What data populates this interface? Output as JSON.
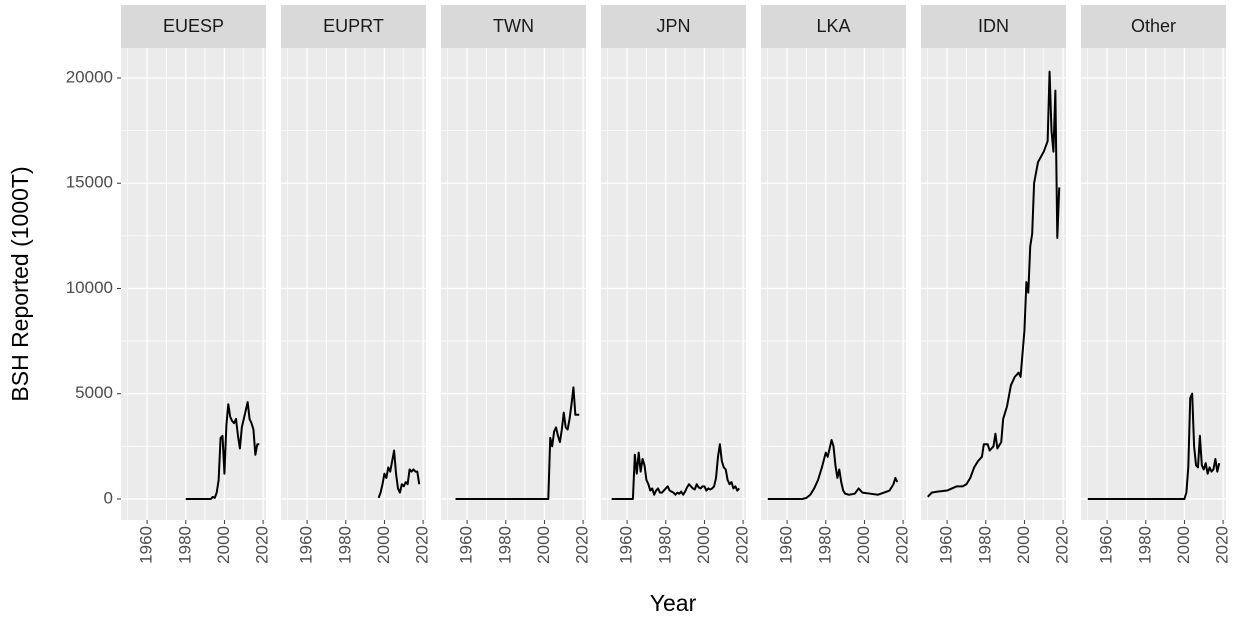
{
  "chart_data": [
    {
      "type": "line",
      "title": "EUESP",
      "ylabel": "BSH Reported (1000T)",
      "xlabel": "Year",
      "color": "#000000",
      "x": [
        1980,
        1993,
        1994,
        1995,
        1996,
        1997,
        1998,
        1999,
        2000,
        2001,
        2002,
        2003,
        2004,
        2005,
        2006,
        2007,
        2008,
        2009,
        2010,
        2011,
        2012,
        2013,
        2014,
        2015,
        2016,
        2017,
        2018
      ],
      "values": [
        0,
        0,
        100,
        50,
        300,
        900,
        2900,
        3000,
        1200,
        3500,
        4500,
        3900,
        3700,
        3600,
        3800,
        3000,
        2400,
        3400,
        3800,
        4200,
        4600,
        3800,
        3600,
        3300,
        2100,
        2600,
        2600
      ],
      "xlim": [
        1946.5,
        2021.5
      ],
      "ylim": [
        -1000,
        21425
      ],
      "xticks": [
        1960,
        1980,
        2000,
        2020
      ],
      "yticks": [
        0,
        5000,
        10000,
        15000,
        20000
      ],
      "grid": true
    },
    {
      "type": "line",
      "title": "EUPRT",
      "color": "#000000",
      "x": [
        1997,
        1998,
        1999,
        2000,
        2001,
        2002,
        2003,
        2004,
        2005,
        2006,
        2007,
        2008,
        2009,
        2010,
        2011,
        2012,
        2013,
        2014,
        2015,
        2016,
        2017,
        2018
      ],
      "values": [
        50,
        300,
        700,
        1200,
        1000,
        1500,
        1300,
        1800,
        2300,
        1200,
        500,
        300,
        700,
        600,
        800,
        700,
        1400,
        1300,
        1400,
        1300,
        1300,
        700
      ],
      "xlim": [
        1946.5,
        2021.5
      ],
      "ylim": [
        -1000,
        21425
      ],
      "xticks": [
        1960,
        1980,
        2000,
        2020
      ],
      "grid": true
    },
    {
      "type": "line",
      "title": "TWN",
      "color": "#000000",
      "x": [
        1954,
        2002,
        2003,
        2004,
        2005,
        2006,
        2007,
        2008,
        2009,
        2010,
        2011,
        2012,
        2013,
        2014,
        2015,
        2016,
        2017,
        2018
      ],
      "values": [
        0,
        0,
        2900,
        2500,
        3200,
        3400,
        3000,
        2700,
        3300,
        4100,
        3400,
        3300,
        3800,
        4500,
        5300,
        4000,
        4000,
        4000
      ],
      "xlim": [
        1946.5,
        2021.5
      ],
      "ylim": [
        -1000,
        21425
      ],
      "xticks": [
        1960,
        1980,
        2000,
        2020
      ],
      "grid": true
    },
    {
      "type": "line",
      "title": "JPN",
      "color": "#000000",
      "x": [
        1952,
        1963,
        1964,
        1965,
        1966,
        1967,
        1968,
        1969,
        1970,
        1971,
        1972,
        1973,
        1974,
        1975,
        1976,
        1977,
        1978,
        1979,
        1980,
        1981,
        1982,
        1983,
        1984,
        1985,
        1986,
        1987,
        1988,
        1989,
        1990,
        1991,
        1992,
        1993,
        1994,
        1995,
        1996,
        1997,
        1998,
        1999,
        2000,
        2001,
        2002,
        2003,
        2004,
        2005,
        2006,
        2007,
        2008,
        2009,
        2010,
        2011,
        2012,
        2013,
        2014,
        2015,
        2016,
        2017,
        2018
      ],
      "values": [
        0,
        0,
        2100,
        1200,
        2200,
        1300,
        1900,
        1600,
        900,
        700,
        400,
        500,
        200,
        400,
        500,
        300,
        300,
        400,
        500,
        600,
        400,
        350,
        300,
        200,
        300,
        250,
        350,
        200,
        350,
        550,
        700,
        600,
        500,
        450,
        700,
        550,
        500,
        600,
        600,
        400,
        500,
        450,
        500,
        600,
        1000,
        2000,
        2600,
        1800,
        1500,
        1400,
        900,
        700,
        800,
        500,
        600,
        400,
        500
      ],
      "xlim": [
        1946.5,
        2021.5
      ],
      "ylim": [
        -1000,
        21425
      ],
      "xticks": [
        1960,
        1980,
        2000,
        2020
      ],
      "grid": true
    },
    {
      "type": "line",
      "title": "LKA",
      "color": "#000000",
      "x": [
        1950,
        1968,
        1970,
        1972,
        1974,
        1976,
        1978,
        1980,
        1981,
        1982,
        1983,
        1984,
        1985,
        1986,
        1987,
        1988,
        1989,
        1990,
        1992,
        1995,
        1997,
        1999,
        2003,
        2007,
        2010,
        2013,
        2015,
        2016,
        2017
      ],
      "values": [
        0,
        0,
        50,
        200,
        500,
        900,
        1500,
        2200,
        2000,
        2400,
        2800,
        2500,
        1600,
        1000,
        1400,
        800,
        400,
        250,
        200,
        250,
        500,
        300,
        250,
        200,
        300,
        400,
        700,
        1000,
        800
      ],
      "xlim": [
        1946.5,
        2021.5
      ],
      "ylim": [
        -1000,
        21425
      ],
      "xticks": [
        1960,
        1980,
        2000,
        2020
      ],
      "grid": true
    },
    {
      "type": "line",
      "title": "IDN",
      "color": "#000000",
      "x": [
        1950,
        1952,
        1955,
        1960,
        1965,
        1968,
        1970,
        1972,
        1974,
        1976,
        1978,
        1979,
        1981,
        1982,
        1984,
        1985,
        1986,
        1988,
        1989,
        1991,
        1993,
        1995,
        1997,
        1998,
        2000,
        2001,
        2002,
        2003,
        2004,
        2005,
        2007,
        2010,
        2012,
        2013,
        2014,
        2015,
        2016,
        2017,
        2018
      ],
      "values": [
        100,
        300,
        350,
        400,
        600,
        600,
        700,
        1000,
        1500,
        1800,
        2000,
        2600,
        2600,
        2300,
        2500,
        3100,
        2400,
        2700,
        3800,
        4400,
        5400,
        5800,
        6000,
        5800,
        8000,
        10300,
        9800,
        12000,
        12600,
        15000,
        16000,
        16500,
        17000,
        20300,
        17500,
        16500,
        19400,
        12400,
        14800
      ],
      "xlim": [
        1946.5,
        2021.5
      ],
      "ylim": [
        -1000,
        21425
      ],
      "xticks": [
        1960,
        1980,
        2000,
        2020
      ],
      "grid": true
    },
    {
      "type": "line",
      "title": "Other",
      "color": "#000000",
      "x": [
        1950,
        2000,
        2001,
        2002,
        2003,
        2004,
        2005,
        2006,
        2007,
        2008,
        2009,
        2010,
        2011,
        2012,
        2013,
        2014,
        2015,
        2016,
        2017,
        2018
      ],
      "values": [
        0,
        0,
        300,
        1500,
        4800,
        5000,
        2500,
        1600,
        1500,
        3000,
        1600,
        1400,
        1700,
        1200,
        1500,
        1300,
        1400,
        1900,
        1300,
        1700
      ],
      "xlim": [
        1946.5,
        2021.5
      ],
      "ylim": [
        -1000,
        21425
      ],
      "xticks": [
        1960,
        1980,
        2000,
        2020
      ],
      "grid": true
    }
  ]
}
